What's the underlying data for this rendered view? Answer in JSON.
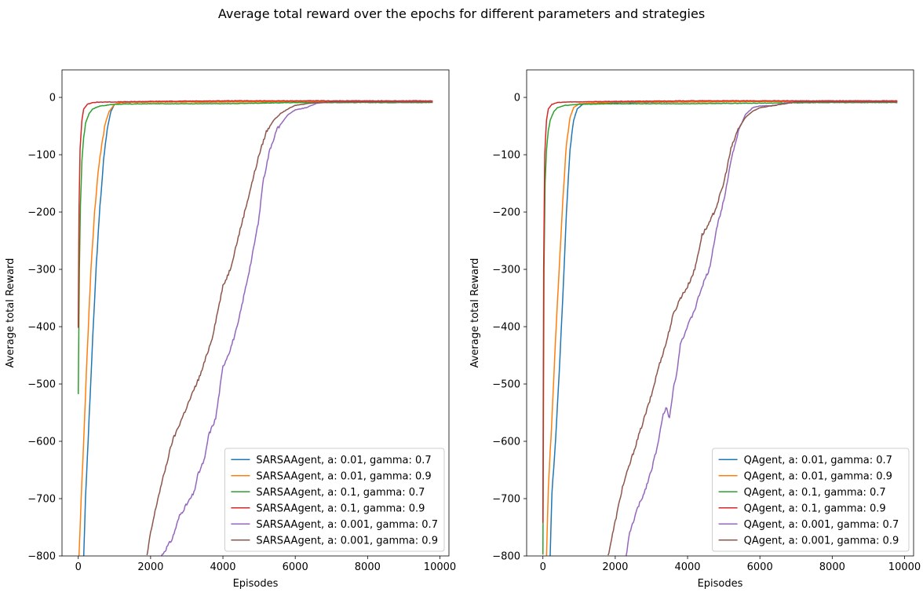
{
  "suptitle": "Average total reward over the epochs for different parameters and strategies",
  "chart_data": [
    {
      "type": "line",
      "title": "",
      "xlabel": "Episodes",
      "ylabel": "Average total Reward",
      "xlim": [
        -450,
        10250
      ],
      "ylim": [
        -800,
        48
      ],
      "xticks": [
        0,
        2000,
        4000,
        6000,
        8000,
        10000
      ],
      "yticks": [
        0,
        -100,
        -200,
        -300,
        -400,
        -500,
        -600,
        -700,
        -800
      ],
      "tick_labels_x": [
        "0",
        "2000",
        "4000",
        "6000",
        "8000",
        "10000"
      ],
      "tick_labels_y": [
        "0",
        "−100",
        "−200",
        "−300",
        "−400",
        "−500",
        "−600",
        "−700",
        "−800"
      ],
      "legend_position": "lower right",
      "series": [
        {
          "name": "SARSAAgent, a: 0.01, gamma: 0.7",
          "color": "#1f77b4",
          "points": [
            [
              150,
              -800
            ],
            [
              200,
              -700
            ],
            [
              300,
              -560
            ],
            [
              400,
              -420
            ],
            [
              500,
              -290
            ],
            [
              600,
              -190
            ],
            [
              700,
              -110
            ],
            [
              800,
              -55
            ],
            [
              900,
              -25
            ],
            [
              1000,
              -12
            ],
            [
              1200,
              -9
            ],
            [
              2000,
              -8
            ],
            [
              4000,
              -8
            ],
            [
              6000,
              -7
            ],
            [
              8000,
              -7
            ],
            [
              9800,
              -7
            ]
          ]
        },
        {
          "name": "SARSAAgent, a: 0.01, gamma: 0.9",
          "color": "#ff7f0e",
          "points": [
            [
              20,
              -800
            ],
            [
              80,
              -700
            ],
            [
              150,
              -600
            ],
            [
              250,
              -440
            ],
            [
              350,
              -300
            ],
            [
              450,
              -200
            ],
            [
              550,
              -130
            ],
            [
              650,
              -80
            ],
            [
              750,
              -45
            ],
            [
              850,
              -25
            ],
            [
              1000,
              -12
            ],
            [
              1200,
              -9
            ],
            [
              2000,
              -8
            ],
            [
              4000,
              -8
            ],
            [
              6000,
              -7
            ],
            [
              8000,
              -7
            ],
            [
              9800,
              -7
            ]
          ]
        },
        {
          "name": "SARSAAgent, a: 0.1, gamma: 0.7",
          "color": "#2ca02c",
          "points": [
            [
              0,
              -520
            ],
            [
              30,
              -300
            ],
            [
              60,
              -190
            ],
            [
              100,
              -110
            ],
            [
              150,
              -70
            ],
            [
              200,
              -45
            ],
            [
              300,
              -28
            ],
            [
              400,
              -20
            ],
            [
              600,
              -15
            ],
            [
              1000,
              -12
            ],
            [
              2000,
              -11
            ],
            [
              4000,
              -11
            ],
            [
              6000,
              -9
            ],
            [
              8000,
              -9
            ],
            [
              9800,
              -9
            ]
          ]
        },
        {
          "name": "SARSAAgent, a: 0.1, gamma: 0.9",
          "color": "#d62728",
          "points": [
            [
              0,
              -400
            ],
            [
              20,
              -200
            ],
            [
              50,
              -90
            ],
            [
              100,
              -40
            ],
            [
              150,
              -20
            ],
            [
              250,
              -12
            ],
            [
              400,
              -9
            ],
            [
              700,
              -8
            ],
            [
              1000,
              -8
            ],
            [
              2000,
              -7
            ],
            [
              4000,
              -6
            ],
            [
              6000,
              -6
            ],
            [
              8000,
              -6
            ],
            [
              9800,
              -6
            ]
          ]
        },
        {
          "name": "SARSAAgent, a: 0.001, gamma: 0.7",
          "color": "#9467bd",
          "points": [
            [
              2300,
              -800
            ],
            [
              2600,
              -770
            ],
            [
              2800,
              -730
            ],
            [
              3000,
              -710
            ],
            [
              3200,
              -690
            ],
            [
              3300,
              -660
            ],
            [
              3500,
              -630
            ],
            [
              3600,
              -590
            ],
            [
              3800,
              -560
            ],
            [
              4000,
              -470
            ],
            [
              4200,
              -440
            ],
            [
              4400,
              -400
            ],
            [
              4600,
              -340
            ],
            [
              4800,
              -280
            ],
            [
              5000,
              -210
            ],
            [
              5100,
              -150
            ],
            [
              5300,
              -90
            ],
            [
              5500,
              -55
            ],
            [
              5800,
              -30
            ],
            [
              6000,
              -22
            ],
            [
              6300,
              -18
            ],
            [
              6600,
              -10
            ],
            [
              7000,
              -8
            ],
            [
              8000,
              -8
            ],
            [
              9800,
              -8
            ]
          ]
        },
        {
          "name": "SARSAAgent, a: 0.001, gamma: 0.9",
          "color": "#8c564b",
          "points": [
            [
              1900,
              -800
            ],
            [
              2000,
              -760
            ],
            [
              2200,
              -700
            ],
            [
              2400,
              -650
            ],
            [
              2600,
              -600
            ],
            [
              2800,
              -570
            ],
            [
              3000,
              -540
            ],
            [
              3200,
              -510
            ],
            [
              3400,
              -480
            ],
            [
              3600,
              -440
            ],
            [
              3700,
              -420
            ],
            [
              3800,
              -390
            ],
            [
              4000,
              -330
            ],
            [
              4200,
              -300
            ],
            [
              4400,
              -250
            ],
            [
              4600,
              -200
            ],
            [
              4800,
              -150
            ],
            [
              5000,
              -100
            ],
            [
              5200,
              -60
            ],
            [
              5400,
              -40
            ],
            [
              5600,
              -28
            ],
            [
              5800,
              -20
            ],
            [
              6000,
              -14
            ],
            [
              6400,
              -10
            ],
            [
              7000,
              -8
            ],
            [
              8000,
              -8
            ],
            [
              9800,
              -8
            ]
          ]
        }
      ]
    },
    {
      "type": "line",
      "title": "",
      "xlabel": "Episodes",
      "ylabel": "Average total Reward",
      "xlim": [
        -450,
        10250
      ],
      "ylim": [
        -800,
        48
      ],
      "xticks": [
        0,
        2000,
        4000,
        6000,
        8000,
        10000
      ],
      "yticks": [
        0,
        -100,
        -200,
        -300,
        -400,
        -500,
        -600,
        -700,
        -800
      ],
      "tick_labels_x": [
        "0",
        "2000",
        "4000",
        "6000",
        "8000",
        "10000"
      ],
      "tick_labels_y": [
        "0",
        "−100",
        "−200",
        "−300",
        "−400",
        "−500",
        "−600",
        "−700",
        "−800"
      ],
      "legend_position": "lower right",
      "series": [
        {
          "name": "QAgent, a: 0.01, gamma: 0.7",
          "color": "#1f77b4",
          "points": [
            [
              200,
              -800
            ],
            [
              250,
              -690
            ],
            [
              350,
              -600
            ],
            [
              450,
              -480
            ],
            [
              550,
              -350
            ],
            [
              650,
              -200
            ],
            [
              750,
              -90
            ],
            [
              850,
              -40
            ],
            [
              950,
              -20
            ],
            [
              1100,
              -12
            ],
            [
              2000,
              -9
            ],
            [
              4000,
              -8
            ],
            [
              6000,
              -7
            ],
            [
              8000,
              -7
            ],
            [
              9800,
              -7
            ]
          ]
        },
        {
          "name": "QAgent, a: 0.01, gamma: 0.9",
          "color": "#ff7f0e",
          "points": [
            [
              100,
              -800
            ],
            [
              150,
              -680
            ],
            [
              250,
              -560
            ],
            [
              350,
              -420
            ],
            [
              450,
              -300
            ],
            [
              550,
              -180
            ],
            [
              650,
              -80
            ],
            [
              750,
              -35
            ],
            [
              850,
              -18
            ],
            [
              1000,
              -11
            ],
            [
              2000,
              -8
            ],
            [
              4000,
              -8
            ],
            [
              6000,
              -7
            ],
            [
              8000,
              -7
            ],
            [
              9800,
              -7
            ]
          ]
        },
        {
          "name": "QAgent, a: 0.1, gamma: 0.7",
          "color": "#2ca02c",
          "points": [
            [
              0,
              -800
            ],
            [
              30,
              -300
            ],
            [
              60,
              -150
            ],
            [
              100,
              -90
            ],
            [
              150,
              -60
            ],
            [
              200,
              -40
            ],
            [
              300,
              -25
            ],
            [
              400,
              -18
            ],
            [
              600,
              -14
            ],
            [
              1000,
              -12
            ],
            [
              2000,
              -11
            ],
            [
              4000,
              -11
            ],
            [
              6000,
              -10
            ],
            [
              8000,
              -9
            ],
            [
              9800,
              -9
            ]
          ]
        },
        {
          "name": "QAgent, a: 0.1, gamma: 0.9",
          "color": "#d62728",
          "points": [
            [
              0,
              -740
            ],
            [
              20,
              -300
            ],
            [
              50,
              -100
            ],
            [
              100,
              -40
            ],
            [
              150,
              -20
            ],
            [
              250,
              -12
            ],
            [
              400,
              -9
            ],
            [
              700,
              -8
            ],
            [
              2000,
              -7
            ],
            [
              4000,
              -6
            ],
            [
              6000,
              -6
            ],
            [
              8000,
              -6
            ],
            [
              9800,
              -6
            ]
          ]
        },
        {
          "name": "QAgent, a: 0.001, gamma: 0.7",
          "color": "#9467bd",
          "points": [
            [
              2300,
              -800
            ],
            [
              2400,
              -760
            ],
            [
              2600,
              -720
            ],
            [
              2800,
              -690
            ],
            [
              3000,
              -650
            ],
            [
              3200,
              -600
            ],
            [
              3300,
              -560
            ],
            [
              3400,
              -540
            ],
            [
              3500,
              -560
            ],
            [
              3600,
              -510
            ],
            [
              3700,
              -480
            ],
            [
              3800,
              -430
            ],
            [
              4000,
              -400
            ],
            [
              4200,
              -370
            ],
            [
              4400,
              -330
            ],
            [
              4600,
              -300
            ],
            [
              4800,
              -230
            ],
            [
              5000,
              -180
            ],
            [
              5200,
              -110
            ],
            [
              5400,
              -60
            ],
            [
              5600,
              -30
            ],
            [
              5800,
              -18
            ],
            [
              6000,
              -15
            ],
            [
              6400,
              -14
            ],
            [
              6700,
              -10
            ],
            [
              7000,
              -8
            ],
            [
              8000,
              -8
            ],
            [
              9800,
              -8
            ]
          ]
        },
        {
          "name": "QAgent, a: 0.001, gamma: 0.9",
          "color": "#8c564b",
          "points": [
            [
              1800,
              -800
            ],
            [
              2000,
              -740
            ],
            [
              2200,
              -680
            ],
            [
              2400,
              -640
            ],
            [
              2600,
              -600
            ],
            [
              2800,
              -560
            ],
            [
              3000,
              -520
            ],
            [
              3200,
              -470
            ],
            [
              3400,
              -430
            ],
            [
              3600,
              -380
            ],
            [
              3800,
              -350
            ],
            [
              4000,
              -330
            ],
            [
              4200,
              -300
            ],
            [
              4400,
              -240
            ],
            [
              4600,
              -220
            ],
            [
              4800,
              -190
            ],
            [
              5000,
              -150
            ],
            [
              5200,
              -90
            ],
            [
              5400,
              -55
            ],
            [
              5600,
              -35
            ],
            [
              5800,
              -24
            ],
            [
              6000,
              -18
            ],
            [
              6400,
              -14
            ],
            [
              6800,
              -10
            ],
            [
              7000,
              -8
            ],
            [
              8000,
              -8
            ],
            [
              9800,
              -8
            ]
          ]
        }
      ]
    }
  ]
}
